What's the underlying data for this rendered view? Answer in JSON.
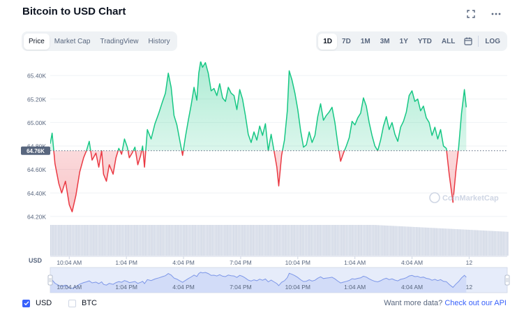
{
  "title": "Bitcoin to USD Chart",
  "icons": {
    "fullscreen": "fullscreen-icon",
    "more": "more-icon",
    "calendar": "calendar-icon"
  },
  "tabs_left": [
    "Price",
    "Market Cap",
    "TradingView",
    "History"
  ],
  "tabs_left_active": "Price",
  "tabs_right": [
    "1D",
    "7D",
    "1M",
    "3M",
    "1Y",
    "YTD",
    "ALL"
  ],
  "tabs_right_active": "1D",
  "log_label": "LOG",
  "watermark": "CoinMarketCap",
  "currency_label": "USD",
  "colors": {
    "up": "#16c784",
    "down": "#ea3943",
    "accent": "#3861fb",
    "volume": "#cfd6e4"
  },
  "footer": {
    "usd_label": "USD",
    "btc_label": "BTC",
    "usd_checked": true,
    "btc_checked": false,
    "api_text": "Want more data?",
    "api_link": "Check out our API"
  },
  "chart_data": {
    "type": "area",
    "y_ticks": [
      "65.40K",
      "65.20K",
      "65.00K",
      "64.80K",
      "64.60K",
      "64.40K",
      "64.20K"
    ],
    "y_tick_values": [
      65400,
      65200,
      65000,
      64800,
      64600,
      64400,
      64200
    ],
    "x_ticks": [
      "10:04 AM",
      "1:04 PM",
      "4:04 PM",
      "7:04 PM",
      "10:04 PM",
      "1:04 AM",
      "4:04 AM",
      "12"
    ],
    "x_tick_hours": [
      1,
      4,
      7,
      10,
      13,
      16,
      19,
      22
    ],
    "reference_price": 64760,
    "reference_label": "64.76K",
    "ylim": [
      64140,
      65520
    ],
    "xlim_hours": [
      0,
      24
    ],
    "price": [
      [
        0.0,
        64820
      ],
      [
        0.1,
        64910
      ],
      [
        0.25,
        64650
      ],
      [
        0.45,
        64480
      ],
      [
        0.6,
        64400
      ],
      [
        0.8,
        64500
      ],
      [
        1.0,
        64300
      ],
      [
        1.15,
        64240
      ],
      [
        1.35,
        64380
      ],
      [
        1.55,
        64580
      ],
      [
        1.75,
        64700
      ],
      [
        1.9,
        64760
      ],
      [
        2.05,
        64840
      ],
      [
        2.2,
        64680
      ],
      [
        2.4,
        64740
      ],
      [
        2.55,
        64620
      ],
      [
        2.7,
        64760
      ],
      [
        2.8,
        64560
      ],
      [
        2.95,
        64500
      ],
      [
        3.1,
        64640
      ],
      [
        3.3,
        64560
      ],
      [
        3.45,
        64700
      ],
      [
        3.6,
        64780
      ],
      [
        3.75,
        64730
      ],
      [
        3.9,
        64860
      ],
      [
        4.05,
        64790
      ],
      [
        4.15,
        64700
      ],
      [
        4.3,
        64740
      ],
      [
        4.45,
        64790
      ],
      [
        4.6,
        64640
      ],
      [
        4.75,
        64720
      ],
      [
        4.85,
        64800
      ],
      [
        4.95,
        64620
      ],
      [
        5.1,
        64940
      ],
      [
        5.3,
        64860
      ],
      [
        5.5,
        64990
      ],
      [
        5.7,
        65080
      ],
      [
        5.9,
        65180
      ],
      [
        6.05,
        65250
      ],
      [
        6.2,
        65420
      ],
      [
        6.35,
        65300
      ],
      [
        6.5,
        65060
      ],
      [
        6.65,
        64980
      ],
      [
        6.8,
        64850
      ],
      [
        6.95,
        64720
      ],
      [
        7.1,
        64880
      ],
      [
        7.25,
        65020
      ],
      [
        7.4,
        65150
      ],
      [
        7.55,
        65300
      ],
      [
        7.7,
        65190
      ],
      [
        7.8,
        65420
      ],
      [
        7.9,
        65520
      ],
      [
        8.0,
        65470
      ],
      [
        8.15,
        65510
      ],
      [
        8.3,
        65420
      ],
      [
        8.45,
        65270
      ],
      [
        8.6,
        65290
      ],
      [
        8.75,
        65230
      ],
      [
        8.9,
        65330
      ],
      [
        9.05,
        65210
      ],
      [
        9.2,
        65180
      ],
      [
        9.35,
        65300
      ],
      [
        9.5,
        65250
      ],
      [
        9.65,
        65230
      ],
      [
        9.8,
        65110
      ],
      [
        9.95,
        65280
      ],
      [
        10.1,
        65200
      ],
      [
        10.25,
        65060
      ],
      [
        10.4,
        64900
      ],
      [
        10.55,
        64830
      ],
      [
        10.7,
        64920
      ],
      [
        10.85,
        64850
      ],
      [
        11.0,
        64970
      ],
      [
        11.15,
        64890
      ],
      [
        11.3,
        64990
      ],
      [
        11.45,
        64760
      ],
      [
        11.6,
        64900
      ],
      [
        11.75,
        64760
      ],
      [
        11.9,
        64620
      ],
      [
        12.0,
        64460
      ],
      [
        12.15,
        64720
      ],
      [
        12.3,
        64850
      ],
      [
        12.45,
        65100
      ],
      [
        12.55,
        65440
      ],
      [
        12.7,
        65360
      ],
      [
        12.85,
        65250
      ],
      [
        13.0,
        65110
      ],
      [
        13.15,
        64930
      ],
      [
        13.3,
        64790
      ],
      [
        13.45,
        64810
      ],
      [
        13.6,
        64920
      ],
      [
        13.75,
        64830
      ],
      [
        13.9,
        64890
      ],
      [
        14.05,
        65050
      ],
      [
        14.2,
        65160
      ],
      [
        14.35,
        65020
      ],
      [
        14.5,
        65060
      ],
      [
        14.65,
        65090
      ],
      [
        14.8,
        65130
      ],
      [
        14.95,
        65000
      ],
      [
        15.1,
        64820
      ],
      [
        15.25,
        64670
      ],
      [
        15.4,
        64740
      ],
      [
        15.55,
        64800
      ],
      [
        15.7,
        64870
      ],
      [
        15.85,
        65010
      ],
      [
        16.0,
        64980
      ],
      [
        16.15,
        65040
      ],
      [
        16.3,
        65080
      ],
      [
        16.45,
        65210
      ],
      [
        16.6,
        65140
      ],
      [
        16.75,
        65000
      ],
      [
        16.9,
        64890
      ],
      [
        17.05,
        64800
      ],
      [
        17.2,
        64760
      ],
      [
        17.35,
        64850
      ],
      [
        17.5,
        64970
      ],
      [
        17.65,
        65050
      ],
      [
        17.8,
        64940
      ],
      [
        17.95,
        65000
      ],
      [
        18.1,
        64900
      ],
      [
        18.25,
        64840
      ],
      [
        18.4,
        64960
      ],
      [
        18.55,
        65010
      ],
      [
        18.7,
        65090
      ],
      [
        18.85,
        65230
      ],
      [
        19.0,
        65270
      ],
      [
        19.15,
        65180
      ],
      [
        19.3,
        65200
      ],
      [
        19.45,
        65100
      ],
      [
        19.6,
        65140
      ],
      [
        19.75,
        65040
      ],
      [
        19.9,
        65000
      ],
      [
        20.05,
        64890
      ],
      [
        20.2,
        64960
      ],
      [
        20.35,
        64860
      ],
      [
        20.5,
        64940
      ],
      [
        20.65,
        64800
      ],
      [
        20.8,
        64780
      ],
      [
        20.95,
        64560
      ],
      [
        21.05,
        64440
      ],
      [
        21.15,
        64320
      ],
      [
        21.3,
        64580
      ],
      [
        21.45,
        64790
      ],
      [
        21.6,
        65080
      ],
      [
        21.75,
        65280
      ],
      [
        21.85,
        65130
      ]
    ]
  }
}
